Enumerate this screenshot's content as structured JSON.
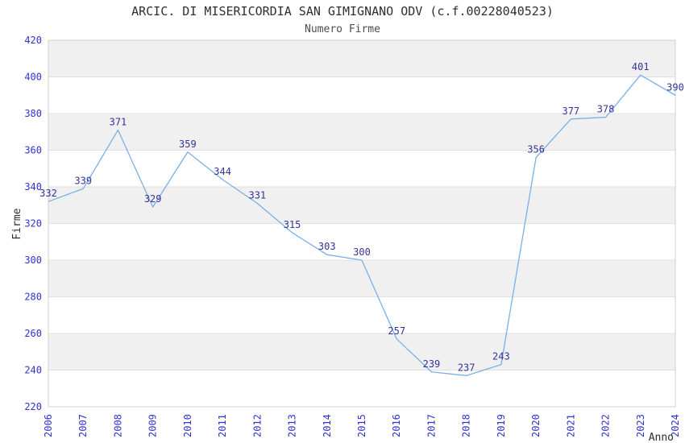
{
  "chart_data": {
    "type": "line",
    "title": "ARCIC. DI MISERICORDIA SAN GIMIGNANO ODV (c.f.00228040523)",
    "subtitle": "Numero Firme",
    "xlabel": "Anno",
    "ylabel": "Firme",
    "categories": [
      "2006",
      "2007",
      "2008",
      "2009",
      "2010",
      "2011",
      "2012",
      "2013",
      "2014",
      "2015",
      "2016",
      "2017",
      "2018",
      "2019",
      "2020",
      "2021",
      "2022",
      "2023",
      "2024"
    ],
    "values": [
      332,
      339,
      371,
      329,
      359,
      344,
      331,
      315,
      303,
      300,
      257,
      239,
      237,
      243,
      356,
      377,
      378,
      401,
      390
    ],
    "ylim": [
      220,
      420
    ],
    "ytick_step": 20,
    "grid": "horizontal-gridlines-with-alternating-bands",
    "legend": "none",
    "data_labels": "shown-above-points",
    "colors": {
      "line": "#7aafe6",
      "data_label": "#333399",
      "tick_label": "#3232cf",
      "title": "#2f2f2f",
      "subtitle": "#4d4d4d",
      "axis_title": "#2f2f2f",
      "band_gray": "#f0f0f0",
      "band_white": "#ffffff",
      "gridline": "#e0e0e0",
      "border": "#d0d0d0",
      "background": "#ffffff"
    }
  }
}
